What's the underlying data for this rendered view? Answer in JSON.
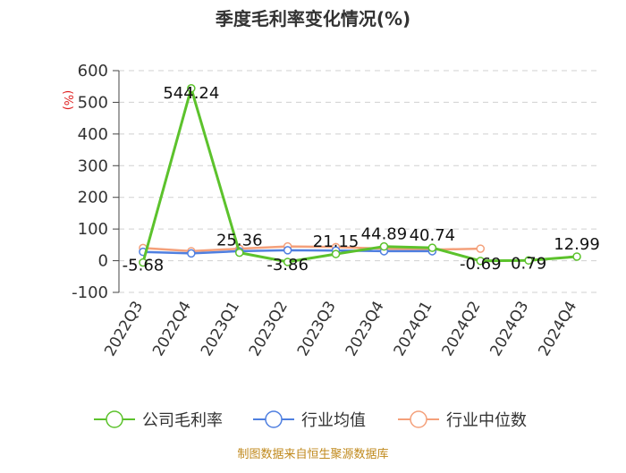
{
  "chart_data": {
    "type": "line",
    "title": "季度毛利率变化情况(%)",
    "ylabel": "(%)",
    "xlabel": "",
    "ylim": [
      -100,
      600
    ],
    "yticks": [
      -100,
      0,
      100,
      200,
      300,
      400,
      500,
      600
    ],
    "grid": true,
    "legend_position": "bottom",
    "categories": [
      "2022Q3",
      "2022Q4",
      "2023Q1",
      "2023Q2",
      "2023Q3",
      "2023Q4",
      "2024Q1",
      "2024Q2",
      "2024Q3",
      "2024Q4"
    ],
    "series": [
      {
        "name": "公司毛利率",
        "color": "#5cc22c",
        "values": [
          -5.68,
          544.24,
          25.36,
          -3.86,
          21.15,
          44.89,
          40.74,
          -0.69,
          0.79,
          12.99
        ],
        "labels": [
          "-5.68",
          "544.24",
          "25.36",
          "-3.86",
          "21.15",
          "44.89",
          "40.74",
          "-0.69",
          "0.79",
          "12.99"
        ]
      },
      {
        "name": "行业均值",
        "color": "#4f7fe0",
        "values": [
          28,
          23,
          30,
          33,
          32,
          30,
          30,
          null,
          null,
          null
        ]
      },
      {
        "name": "行业中位数",
        "color": "#f4a07a",
        "values": [
          40,
          30,
          38,
          45,
          43,
          38,
          35,
          38,
          null,
          null
        ]
      }
    ],
    "source": "制图数据来自恒生聚源数据库"
  }
}
